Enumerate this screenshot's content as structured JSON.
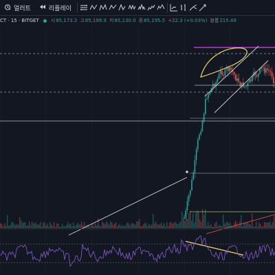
{
  "toolbar": {
    "alert_label": "얼러트",
    "replay_label": "리플레이",
    "tools": [
      "fib-retracement-icon",
      "zigzag-pattern-icon",
      "xabcd-pattern-icon",
      "abcd-pattern-icon",
      "cypher-pattern-icon",
      "elliott-abcde-icon",
      "head-shoulders-icon",
      "three-drives-icon",
      "elliott-wave-icon",
      "forecast-icon",
      "bars-pattern-icon",
      "projection-icon"
    ]
  },
  "legend": {
    "symbol": "CT · 15 · BITGET",
    "open_key": "시",
    "open": "85,173.2",
    "high_key": "고",
    "high": "85,199.9",
    "low_key": "저",
    "low": "85,130.0",
    "close_key": "종",
    "close": "85,195.5",
    "change": "+22.3 (+0.03%)",
    "volume_key": "볼륨",
    "volume": "215.49"
  },
  "colors": {
    "background": "#131722",
    "up": "#26a69a",
    "down": "#ef5350",
    "rsi": "#7e57c2",
    "highlight": "#f5d76e",
    "magenta_line": "#e040fb",
    "grid_dash": "#9598a1"
  }
}
